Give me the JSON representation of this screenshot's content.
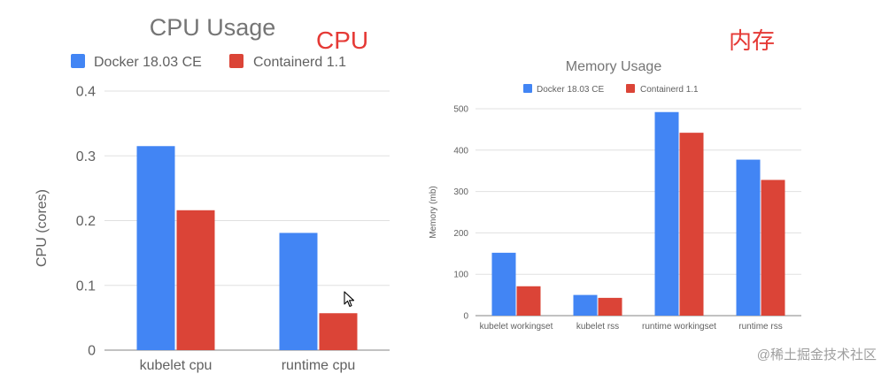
{
  "annotations": {
    "cpu_label": "CPU",
    "memory_label": "内存",
    "watermark": "@稀土掘金技术社区"
  },
  "colors": {
    "docker": "#4285f4",
    "containerd": "#db4437",
    "annotation_red": "#e53935",
    "grid": "#e0e0e0",
    "axis_text": "#616161",
    "title_text": "#757575"
  },
  "chart_data": [
    {
      "type": "bar",
      "title": "CPU Usage",
      "ylabel": "CPU (cores)",
      "xlabel": "",
      "categories": [
        "kubelet cpu",
        "runtime cpu"
      ],
      "series": [
        {
          "name": "Docker 18.03 CE",
          "values": [
            0.315,
            0.181
          ]
        },
        {
          "name": "Containerd 1.1",
          "values": [
            0.216,
            0.057
          ]
        }
      ],
      "ylim": [
        0,
        0.4
      ],
      "yticks": [
        "0",
        "0.1",
        "0.2",
        "0.3",
        "0.4"
      ],
      "grid": true,
      "legend_position": "top"
    },
    {
      "type": "bar",
      "title": "Memory Usage",
      "ylabel": "Memory (mb)",
      "xlabel": "",
      "categories": [
        "kubelet workingset",
        "kubelet rss",
        "runtime workingset",
        "runtime rss"
      ],
      "series": [
        {
          "name": "Docker 18.03 CE",
          "values": [
            152,
            50,
            492,
            377
          ]
        },
        {
          "name": "Containerd 1.1",
          "values": [
            71,
            43,
            442,
            328
          ]
        }
      ],
      "ylim": [
        0,
        500
      ],
      "yticks": [
        "0",
        "100",
        "200",
        "300",
        "400",
        "500"
      ],
      "grid": true,
      "legend_position": "top"
    }
  ]
}
